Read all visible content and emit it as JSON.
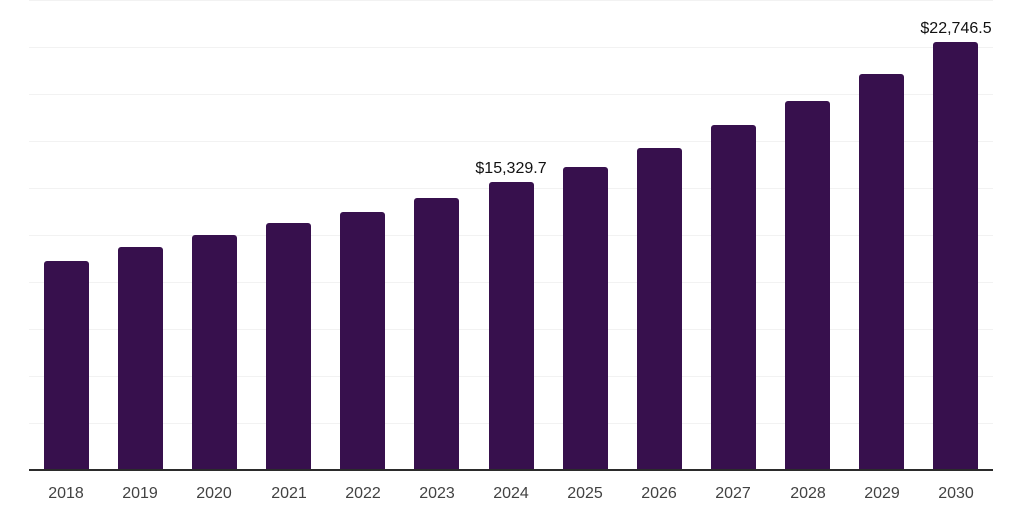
{
  "chart_data": {
    "type": "bar",
    "title": "",
    "xlabel": "",
    "ylabel": "",
    "categories": [
      "2018",
      "2019",
      "2020",
      "2021",
      "2022",
      "2023",
      "2024",
      "2025",
      "2026",
      "2027",
      "2028",
      "2029",
      "2030"
    ],
    "values": [
      11120,
      11860,
      12500,
      13140,
      13720,
      14470,
      15329.7,
      16110,
      17130,
      18350,
      19630,
      21060,
      22746.5
    ],
    "labeled_points": [
      {
        "category": "2024",
        "label": "$15,329.7"
      },
      {
        "category": "2030",
        "label": "$22,746.5"
      }
    ],
    "ylim": [
      0,
      25000
    ],
    "gridline_interval": 2500,
    "grid": true,
    "legend": "none",
    "colors": {
      "bar": "#37104d",
      "axis_line": "#2b2b2b",
      "gridline": "#f2f2f2",
      "value_label": "#111111",
      "tick_label": "#424242",
      "background": "#ffffff"
    }
  }
}
